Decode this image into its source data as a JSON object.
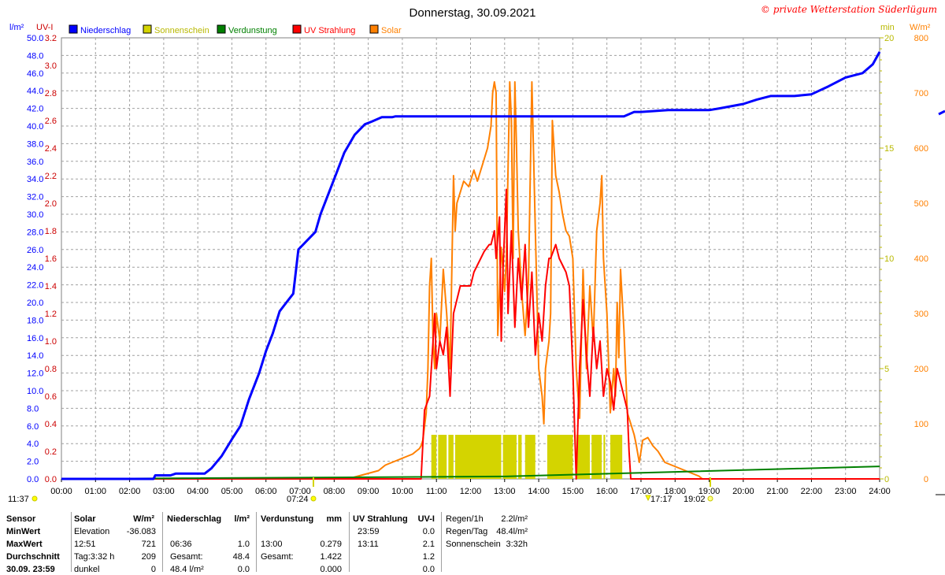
{
  "header": {
    "title": "Donnerstag, 30.09.2021",
    "watermark": "© private Wetterstation Süderlügum"
  },
  "axes": {
    "left_unit": "l/m²",
    "uv_unit": "UV-I",
    "right_min_unit": "min",
    "right_w_unit": "W/m²"
  },
  "legend": [
    {
      "label": "Niederschlag",
      "color": "#0000ff"
    },
    {
      "label": "Sonnenschein",
      "color": "#d4d400"
    },
    {
      "label": "Verdunstung",
      "color": "#008000"
    },
    {
      "label": "UV Strahlung",
      "color": "#ff0000"
    },
    {
      "label": "Solar",
      "color": "#ff8000"
    }
  ],
  "chart_data": {
    "type": "line",
    "title": "Donnerstag, 30.09.2021",
    "x_ticks": [
      "00:00",
      "01:00",
      "02:00",
      "03:00",
      "04:00",
      "05:00",
      "06:00",
      "07:00",
      "08:00",
      "09:00",
      "10:00",
      "11:00",
      "12:00",
      "13:00",
      "14:00",
      "15:00",
      "16:00",
      "17:00",
      "18:00",
      "19:00",
      "20:00",
      "21:00",
      "22:00",
      "23:00",
      "24:00"
    ],
    "xlim": [
      0,
      24
    ],
    "precip_axis": {
      "label": "l/m²",
      "range": [
        0,
        50
      ],
      "ticks": [
        "0.0",
        "2.0",
        "4.0",
        "6.0",
        "8.0",
        "10.0",
        "12.0",
        "14.0",
        "16.0",
        "18.0",
        "20.0",
        "22.0",
        "24.0",
        "26.0",
        "28.0",
        "30.0",
        "32.0",
        "34.0",
        "36.0",
        "38.0",
        "40.0",
        "42.0",
        "44.0",
        "46.0",
        "48.0",
        "50.0"
      ]
    },
    "uv_axis": {
      "label": "UV-I",
      "range": [
        0,
        3.2
      ],
      "ticks": [
        "0.0",
        "0.2",
        "0.4",
        "0.6",
        "0.8",
        "1.0",
        "1.2",
        "1.4",
        "1.6",
        "1.8",
        "2.0",
        "2.2",
        "2.4",
        "2.6",
        "2.8",
        "3.0",
        "3.2"
      ]
    },
    "sun_axis": {
      "label": "min",
      "range": [
        0,
        20
      ],
      "ticks": [
        "0",
        "5",
        "10",
        "15",
        "20"
      ]
    },
    "solar_axis": {
      "label": "W/m²",
      "range": [
        0,
        800
      ],
      "ticks": [
        "0",
        "100",
        "200",
        "300",
        "400",
        "500",
        "600",
        "700",
        "800"
      ]
    },
    "grid": true,
    "legend_position": "top",
    "series": [
      {
        "name": "Niederschlag",
        "color": "#0000ff",
        "axis": "precip",
        "points": [
          [
            0,
            0
          ],
          [
            2.7,
            0
          ],
          [
            2.75,
            0.4
          ],
          [
            3.2,
            0.4
          ],
          [
            3.35,
            0.6
          ],
          [
            4.2,
            0.6
          ],
          [
            4.4,
            1.2
          ],
          [
            4.7,
            2.6
          ],
          [
            5,
            4.5
          ],
          [
            5.25,
            6
          ],
          [
            5.5,
            9
          ],
          [
            5.8,
            12
          ],
          [
            6.0,
            14.5
          ],
          [
            6.2,
            16.5
          ],
          [
            6.4,
            19
          ],
          [
            6.6,
            20
          ],
          [
            6.8,
            21
          ],
          [
            6.95,
            26
          ],
          [
            7.2,
            27
          ],
          [
            7.45,
            28
          ],
          [
            7.6,
            30
          ],
          [
            7.8,
            32
          ],
          [
            8.1,
            35
          ],
          [
            8.3,
            37
          ],
          [
            8.6,
            39
          ],
          [
            8.9,
            40.2
          ],
          [
            9.1,
            40.5
          ],
          [
            9.4,
            41
          ],
          [
            9.7,
            41
          ],
          [
            9.8,
            41.1
          ],
          [
            16.5,
            41.1
          ],
          [
            16.8,
            41.6
          ],
          [
            17.0,
            41.6
          ],
          [
            17.8,
            41.8
          ],
          [
            19.0,
            41.8
          ],
          [
            19.3,
            42
          ],
          [
            20.0,
            42.5
          ],
          [
            20.4,
            43
          ],
          [
            20.8,
            43.4
          ],
          [
            21.5,
            43.4
          ],
          [
            22.0,
            43.6
          ],
          [
            22.5,
            44.5
          ],
          [
            23.0,
            45.5
          ],
          [
            23.5,
            46
          ],
          [
            23.8,
            47
          ],
          [
            24.0,
            48.4
          ]
        ]
      },
      {
        "name": "Sonnenschein",
        "color": "#d4d400",
        "axis": "sun",
        "bars": [
          [
            10.85,
            11.0,
            2
          ],
          [
            11.05,
            11.3,
            2
          ],
          [
            11.35,
            11.5,
            2
          ],
          [
            11.55,
            12.9,
            2
          ],
          [
            12.95,
            13.35,
            2
          ],
          [
            13.4,
            13.5,
            2
          ],
          [
            13.6,
            13.9,
            2
          ],
          [
            14.25,
            15.0,
            2
          ],
          [
            15.1,
            15.5,
            2
          ],
          [
            15.55,
            15.85,
            2
          ],
          [
            15.9,
            15.95,
            2
          ],
          [
            16.1,
            16.45,
            2
          ]
        ]
      },
      {
        "name": "Verdunstung",
        "color": "#008000",
        "axis": "precip",
        "points": [
          [
            0,
            0
          ],
          [
            13.0,
            0.279
          ],
          [
            24,
            1.422
          ]
        ]
      },
      {
        "name": "UV Strahlung",
        "color": "#ff0000",
        "axis": "uv",
        "points": [
          [
            0,
            0
          ],
          [
            10.55,
            0
          ],
          [
            10.65,
            0.5
          ],
          [
            10.8,
            0.6
          ],
          [
            10.9,
            1.0
          ],
          [
            10.95,
            1.2
          ],
          [
            11.0,
            0.8
          ],
          [
            11.1,
            1.0
          ],
          [
            11.2,
            0.9
          ],
          [
            11.3,
            1.1
          ],
          [
            11.4,
            0.6
          ],
          [
            11.5,
            1.2
          ],
          [
            11.6,
            1.3
          ],
          [
            11.7,
            1.4
          ],
          [
            12.0,
            1.4
          ],
          [
            12.1,
            1.5
          ],
          [
            12.3,
            1.6
          ],
          [
            12.4,
            1.65
          ],
          [
            12.55,
            1.7
          ],
          [
            12.6,
            1.7
          ],
          [
            12.7,
            1.8
          ],
          [
            12.75,
            1.6
          ],
          [
            12.85,
            1.9
          ],
          [
            12.9,
            1.0
          ],
          [
            12.95,
            1.5
          ],
          [
            13.05,
            2.1
          ],
          [
            13.1,
            1.2
          ],
          [
            13.2,
            1.8
          ],
          [
            13.3,
            1.1
          ],
          [
            13.4,
            1.6
          ],
          [
            13.5,
            1.3
          ],
          [
            13.6,
            1.7
          ],
          [
            13.7,
            1.1
          ],
          [
            13.8,
            1.5
          ],
          [
            13.9,
            0.9
          ],
          [
            14.0,
            1.2
          ],
          [
            14.1,
            1.0
          ],
          [
            14.2,
            1.4
          ],
          [
            14.3,
            1.6
          ],
          [
            14.35,
            1.6
          ],
          [
            14.5,
            1.7
          ],
          [
            14.6,
            1.6
          ],
          [
            14.8,
            1.5
          ],
          [
            14.9,
            1.4
          ],
          [
            15.0,
            0.8
          ],
          [
            15.05,
            0.4
          ],
          [
            15.1,
            0.0
          ],
          [
            15.2,
            0.8
          ],
          [
            15.3,
            1.3
          ],
          [
            15.4,
            0.9
          ],
          [
            15.5,
            0.6
          ],
          [
            15.6,
            1.1
          ],
          [
            15.7,
            0.8
          ],
          [
            15.8,
            1.0
          ],
          [
            15.9,
            0.6
          ],
          [
            16.0,
            0.8
          ],
          [
            16.1,
            0.7
          ],
          [
            16.2,
            0.5
          ],
          [
            16.3,
            0.8
          ],
          [
            16.4,
            0.7
          ],
          [
            16.5,
            0.6
          ],
          [
            16.6,
            0.5
          ],
          [
            16.65,
            0.2
          ],
          [
            16.7,
            0
          ],
          [
            24,
            0
          ]
        ]
      },
      {
        "name": "Solar",
        "color": "#ff8000",
        "axis": "solar",
        "points": [
          [
            0,
            0
          ],
          [
            8.4,
            0
          ],
          [
            8.7,
            5
          ],
          [
            9.0,
            10
          ],
          [
            9.3,
            15
          ],
          [
            9.5,
            25
          ],
          [
            9.7,
            30
          ],
          [
            9.9,
            35
          ],
          [
            10.1,
            40
          ],
          [
            10.3,
            45
          ],
          [
            10.4,
            50
          ],
          [
            10.5,
            55
          ],
          [
            10.55,
            60
          ],
          [
            10.6,
            70
          ],
          [
            10.7,
            120
          ],
          [
            10.75,
            200
          ],
          [
            10.8,
            350
          ],
          [
            10.85,
            400
          ],
          [
            10.9,
            250
          ],
          [
            10.95,
            200
          ],
          [
            11.0,
            300
          ],
          [
            11.1,
            250
          ],
          [
            11.2,
            380
          ],
          [
            11.3,
            300
          ],
          [
            11.4,
            200
          ],
          [
            11.5,
            550
          ],
          [
            11.55,
            450
          ],
          [
            11.6,
            500
          ],
          [
            11.7,
            520
          ],
          [
            11.8,
            540
          ],
          [
            11.95,
            530
          ],
          [
            12.1,
            560
          ],
          [
            12.2,
            540
          ],
          [
            12.35,
            570
          ],
          [
            12.5,
            600
          ],
          [
            12.6,
            640
          ],
          [
            12.65,
            700
          ],
          [
            12.7,
            720
          ],
          [
            12.75,
            700
          ],
          [
            12.8,
            260
          ],
          [
            12.9,
            420
          ],
          [
            13.0,
            340
          ],
          [
            13.05,
            400
          ],
          [
            13.1,
            560
          ],
          [
            13.15,
            720
          ],
          [
            13.2,
            650
          ],
          [
            13.25,
            400
          ],
          [
            13.3,
            720
          ],
          [
            13.35,
            600
          ],
          [
            13.4,
            450
          ],
          [
            13.5,
            340
          ],
          [
            13.6,
            260
          ],
          [
            13.7,
            360
          ],
          [
            13.8,
            720
          ],
          [
            13.9,
            450
          ],
          [
            14.0,
            200
          ],
          [
            14.1,
            150
          ],
          [
            14.15,
            100
          ],
          [
            14.2,
            200
          ],
          [
            14.3,
            250
          ],
          [
            14.35,
            300
          ],
          [
            14.4,
            650
          ],
          [
            14.5,
            550
          ],
          [
            14.6,
            520
          ],
          [
            14.7,
            480
          ],
          [
            14.8,
            450
          ],
          [
            14.9,
            440
          ],
          [
            15.0,
            400
          ],
          [
            15.1,
            200
          ],
          [
            15.2,
            110
          ],
          [
            15.3,
            380
          ],
          [
            15.4,
            200
          ],
          [
            15.5,
            350
          ],
          [
            15.6,
            250
          ],
          [
            15.7,
            450
          ],
          [
            15.8,
            500
          ],
          [
            15.85,
            550
          ],
          [
            15.9,
            400
          ],
          [
            16.0,
            300
          ],
          [
            16.1,
            120
          ],
          [
            16.2,
            200
          ],
          [
            16.25,
            150
          ],
          [
            16.3,
            320
          ],
          [
            16.35,
            220
          ],
          [
            16.4,
            380
          ],
          [
            16.5,
            270
          ],
          [
            16.6,
            120
          ],
          [
            16.7,
            100
          ],
          [
            16.8,
            80
          ],
          [
            16.85,
            65
          ],
          [
            16.95,
            30
          ],
          [
            17.05,
            70
          ],
          [
            17.2,
            75
          ],
          [
            17.35,
            60
          ],
          [
            17.5,
            50
          ],
          [
            17.7,
            30
          ],
          [
            17.9,
            25
          ],
          [
            18.1,
            20
          ],
          [
            18.3,
            15
          ],
          [
            18.5,
            10
          ],
          [
            18.7,
            5
          ],
          [
            18.8,
            0
          ],
          [
            24,
            0
          ]
        ]
      }
    ],
    "annotations": [
      "11:37",
      "07:24",
      "17:17",
      "19:02"
    ]
  },
  "stats": {
    "sensor_col": {
      "header": "Sensor",
      "rows": [
        "MinWert",
        "MaxWert",
        "Durchschnitt",
        "30.09. 23:59"
      ]
    },
    "solar": {
      "header": "Solar",
      "unit": "W/m²",
      "rows": [
        [
          "Elevation",
          "-36.083"
        ],
        [
          "12:51",
          "721"
        ],
        [
          "Tag:3:32 h",
          "209"
        ],
        [
          "dunkel",
          "0"
        ]
      ]
    },
    "niederschlag": {
      "header": "Niederschlag",
      "unit": "l/m²",
      "rows": [
        [
          "",
          ""
        ],
        [
          "06:36",
          "1.0"
        ],
        [
          "Gesamt:",
          "48.4"
        ],
        [
          "48.4 l/m²",
          "0.0"
        ]
      ]
    },
    "verdunstung": {
      "header": "Verdunstung",
      "unit": "mm",
      "rows": [
        [
          "",
          ""
        ],
        [
          "13:00",
          "0.279"
        ],
        [
          "Gesamt:",
          "1.422"
        ],
        [
          "",
          "0.000"
        ]
      ]
    },
    "uv": {
      "header": "UV Strahlung",
      "unit": "UV-I",
      "rows": [
        [
          "23:59",
          "0.0"
        ],
        [
          "13:11",
          "2.1"
        ],
        [
          "",
          "1.2"
        ],
        [
          "",
          "0.0"
        ]
      ]
    },
    "regen": {
      "rows": [
        [
          "Regen/1h",
          "2.2l/m²"
        ],
        [
          "Regen/Tag",
          "48.4l/m²"
        ],
        [
          "Sonnenschein",
          "3:32h"
        ]
      ]
    }
  }
}
